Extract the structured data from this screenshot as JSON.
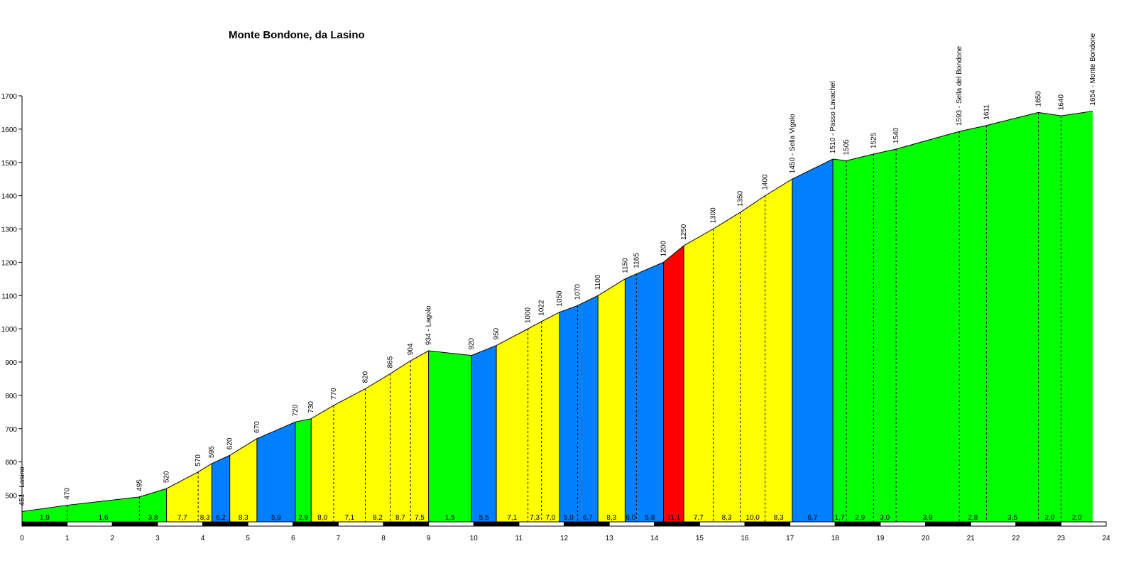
{
  "chart_data": {
    "type": "area",
    "title": "Monte Bondone, da Lasino",
    "xlabel": "",
    "ylabel": "",
    "xlim": [
      0,
      24
    ],
    "ylim": [
      420,
      1700
    ],
    "x_ticks": [
      "0",
      "1",
      "2",
      "3",
      "4",
      "5",
      "6",
      "7",
      "8",
      "9",
      "10",
      "11",
      "12",
      "13",
      "14",
      "15",
      "16",
      "17",
      "18",
      "19",
      "20",
      "21",
      "22",
      "23",
      "24"
    ],
    "y_ticks": [
      "500",
      "600",
      "700",
      "800",
      "900",
      "1000",
      "1100",
      "1200",
      "1300",
      "1400",
      "1500",
      "1600",
      "1700"
    ],
    "grid": false,
    "colors": {
      "easy": "#00ff00",
      "medium": "#ffff00",
      "hard": "#0080ff",
      "steep": "#ff0000"
    },
    "points": [
      {
        "x": 0.0,
        "y": 451,
        "label": "451 - Lasino"
      },
      {
        "x": 1.0,
        "y": 470,
        "label": "470"
      },
      {
        "x": 2.6,
        "y": 495,
        "label": "495"
      },
      {
        "x": 3.2,
        "y": 520,
        "label": "520"
      },
      {
        "x": 3.9,
        "y": 570,
        "label": "570"
      },
      {
        "x": 4.2,
        "y": 595,
        "label": "595"
      },
      {
        "x": 4.6,
        "y": 620,
        "label": "620"
      },
      {
        "x": 5.2,
        "y": 670,
        "label": "670"
      },
      {
        "x": 6.05,
        "y": 720,
        "label": "720"
      },
      {
        "x": 6.4,
        "y": 730,
        "label": "730"
      },
      {
        "x": 6.9,
        "y": 770,
        "label": "770"
      },
      {
        "x": 7.6,
        "y": 820,
        "label": "820"
      },
      {
        "x": 8.15,
        "y": 865,
        "label": "865"
      },
      {
        "x": 8.6,
        "y": 904,
        "label": "904"
      },
      {
        "x": 9.0,
        "y": 934,
        "label": "934 - Lagolo"
      },
      {
        "x": 9.95,
        "y": 920,
        "label": "920"
      },
      {
        "x": 10.5,
        "y": 950,
        "label": "950"
      },
      {
        "x": 11.2,
        "y": 1000,
        "label": "1000"
      },
      {
        "x": 11.5,
        "y": 1022,
        "label": "1022"
      },
      {
        "x": 11.9,
        "y": 1050,
        "label": "1050"
      },
      {
        "x": 12.3,
        "y": 1070,
        "label": "1070"
      },
      {
        "x": 12.75,
        "y": 1100,
        "label": "1100"
      },
      {
        "x": 13.35,
        "y": 1150,
        "label": "1150"
      },
      {
        "x": 13.6,
        "y": 1165,
        "label": "1165"
      },
      {
        "x": 14.2,
        "y": 1200,
        "label": "1200"
      },
      {
        "x": 14.65,
        "y": 1250,
        "label": "1250"
      },
      {
        "x": 15.3,
        "y": 1300,
        "label": "1300"
      },
      {
        "x": 15.9,
        "y": 1350,
        "label": "1350"
      },
      {
        "x": 16.45,
        "y": 1400,
        "label": "1400"
      },
      {
        "x": 17.05,
        "y": 1450,
        "label": "1450 - Sella Vigolo"
      },
      {
        "x": 17.95,
        "y": 1510,
        "label": "1510 - Passo Lavachel"
      },
      {
        "x": 18.25,
        "y": 1505,
        "label": "1505"
      },
      {
        "x": 18.85,
        "y": 1525,
        "label": "1525"
      },
      {
        "x": 19.35,
        "y": 1540,
        "label": "1540"
      },
      {
        "x": 20.75,
        "y": 1593,
        "label": "1593 - Sella del Bondone"
      },
      {
        "x": 21.35,
        "y": 1611,
        "label": "1611"
      },
      {
        "x": 22.5,
        "y": 1650,
        "label": "1650"
      },
      {
        "x": 23.0,
        "y": 1640,
        "label": "1640"
      },
      {
        "x": 23.7,
        "y": 1654,
        "label": "1654 - Monte Bondone"
      }
    ],
    "segments": [
      {
        "from": 0,
        "to": 1,
        "grade": "1,9",
        "color": "easy",
        "sep": "dashed"
      },
      {
        "from": 1,
        "to": 2,
        "grade": "1,6",
        "color": "easy",
        "sep": "dashed"
      },
      {
        "from": 2,
        "to": 3,
        "grade": "3,8",
        "color": "easy",
        "sep": "solid"
      },
      {
        "from": 3,
        "to": 4,
        "grade": "7,7",
        "color": "medium",
        "sep": "dashed"
      },
      {
        "from": 4,
        "to": 5,
        "grade": "8,3",
        "color": "medium",
        "sep": "solid"
      },
      {
        "from": 5,
        "to": 6,
        "grade": "6,2",
        "color": "hard",
        "sep": "solid"
      },
      {
        "from": 6,
        "to": 7,
        "grade": "8,3",
        "color": "medium",
        "sep": "solid"
      },
      {
        "from": 7,
        "to": 8,
        "grade": "5,9",
        "color": "hard",
        "sep": "solid"
      },
      {
        "from": 8,
        "to": 9,
        "grade": "2,9",
        "color": "easy",
        "sep": "solid"
      },
      {
        "from": 9,
        "to": 10,
        "grade": "8,0",
        "color": "medium",
        "sep": "dashed"
      },
      {
        "from": 10,
        "to": 11,
        "grade": "7,1",
        "color": "medium",
        "sep": "dashed"
      },
      {
        "from": 11,
        "to": 12,
        "grade": "8,2",
        "color": "medium",
        "sep": "dashed"
      },
      {
        "from": 12,
        "to": 13,
        "grade": "8,7",
        "color": "medium",
        "sep": "dashed"
      },
      {
        "from": 13,
        "to": 14,
        "grade": "7,5",
        "color": "medium",
        "sep": "solid"
      },
      {
        "from": 14,
        "to": 15,
        "grade": "1,5",
        "color": "easy",
        "sep": "solid"
      },
      {
        "from": 15,
        "to": 16,
        "grade": "5,5",
        "color": "hard",
        "sep": "solid"
      },
      {
        "from": 16,
        "to": 17,
        "grade": "7,1",
        "color": "medium",
        "sep": "dashed"
      },
      {
        "from": 17,
        "to": 18,
        "grade": "7,3",
        "color": "medium",
        "sep": "dashed"
      },
      {
        "from": 18,
        "to": 19,
        "grade": "7,0",
        "color": "medium",
        "sep": "solid"
      },
      {
        "from": 19,
        "to": 20,
        "grade": "5,0",
        "color": "hard",
        "sep": "dashed"
      },
      {
        "from": 20,
        "to": 21,
        "grade": "6,7",
        "color": "hard",
        "sep": "solid"
      },
      {
        "from": 21,
        "to": 22,
        "grade": "8,3",
        "color": "medium",
        "sep": "solid"
      },
      {
        "from": 22,
        "to": 23,
        "grade": "6,0",
        "color": "hard",
        "sep": "dashed"
      },
      {
        "from": 23,
        "to": 24,
        "grade": "5,8",
        "color": "hard",
        "sep": "solid"
      },
      {
        "from": 24,
        "to": 25,
        "grade": "11,1",
        "color": "steep",
        "sep": "solid"
      },
      {
        "from": 25,
        "to": 26,
        "grade": "7,7",
        "color": "medium",
        "sep": "dashed"
      },
      {
        "from": 26,
        "to": 27,
        "grade": "8,3",
        "color": "medium",
        "sep": "dashed"
      },
      {
        "from": 27,
        "to": 28,
        "grade": "10,0",
        "color": "medium",
        "sep": "dashed"
      },
      {
        "from": 28,
        "to": 29,
        "grade": "8,3",
        "color": "medium",
        "sep": "solid"
      },
      {
        "from": 29,
        "to": 30,
        "grade": "6,7",
        "color": "hard",
        "sep": "solid"
      },
      {
        "from": 30,
        "to": 31,
        "grade": "1,7",
        "color": "easy",
        "sep": "dashed"
      },
      {
        "from": 31,
        "to": 32,
        "grade": "2,9",
        "color": "easy",
        "sep": "dashed"
      },
      {
        "from": 32,
        "to": 33,
        "grade": "3,0",
        "color": "easy",
        "sep": "dashed"
      },
      {
        "from": 33,
        "to": 34,
        "grade": "3,9",
        "color": "easy",
        "sep": "dashed"
      },
      {
        "from": 34,
        "to": 35,
        "grade": "2,8",
        "color": "easy",
        "sep": "dashed"
      },
      {
        "from": 35,
        "to": 36,
        "grade": "3,5",
        "color": "easy",
        "sep": "dashed"
      },
      {
        "from": 36,
        "to": 37,
        "grade": "2,0",
        "color": "easy",
        "sep": "dashed"
      },
      {
        "from": 37,
        "to": 38,
        "grade": "2,0",
        "color": "easy",
        "sep": "none"
      }
    ]
  }
}
